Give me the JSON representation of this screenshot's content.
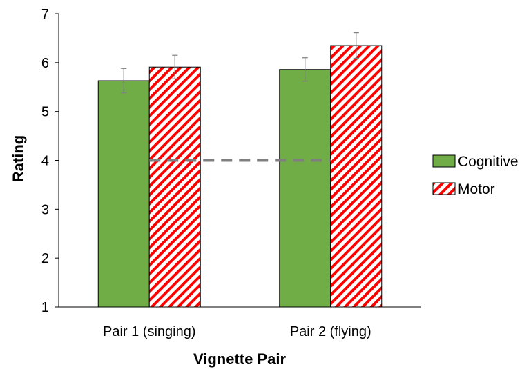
{
  "chart_data": {
    "type": "bar",
    "xlabel": "Vignette Pair",
    "ylabel": "Rating",
    "ylim": [
      1,
      7
    ],
    "yticks": [
      1,
      2,
      3,
      4,
      5,
      6,
      7
    ],
    "categories": [
      "Pair 1 (singing)",
      "Pair 2 (flying)"
    ],
    "series": [
      {
        "name": "Cognitive",
        "values": [
          5.63,
          5.86
        ],
        "errors": [
          0.25,
          0.24
        ],
        "color": "#70ad47",
        "pattern": "solid"
      },
      {
        "name": "Motor",
        "values": [
          5.91,
          6.35
        ],
        "errors": [
          0.24,
          0.26
        ],
        "color": "#ff0000",
        "pattern": "diagonal-stripes"
      }
    ],
    "reference_line": {
      "y": 4,
      "style": "dashed",
      "color": "#7f7f7f"
    },
    "legend_position": "right",
    "grid": false
  }
}
